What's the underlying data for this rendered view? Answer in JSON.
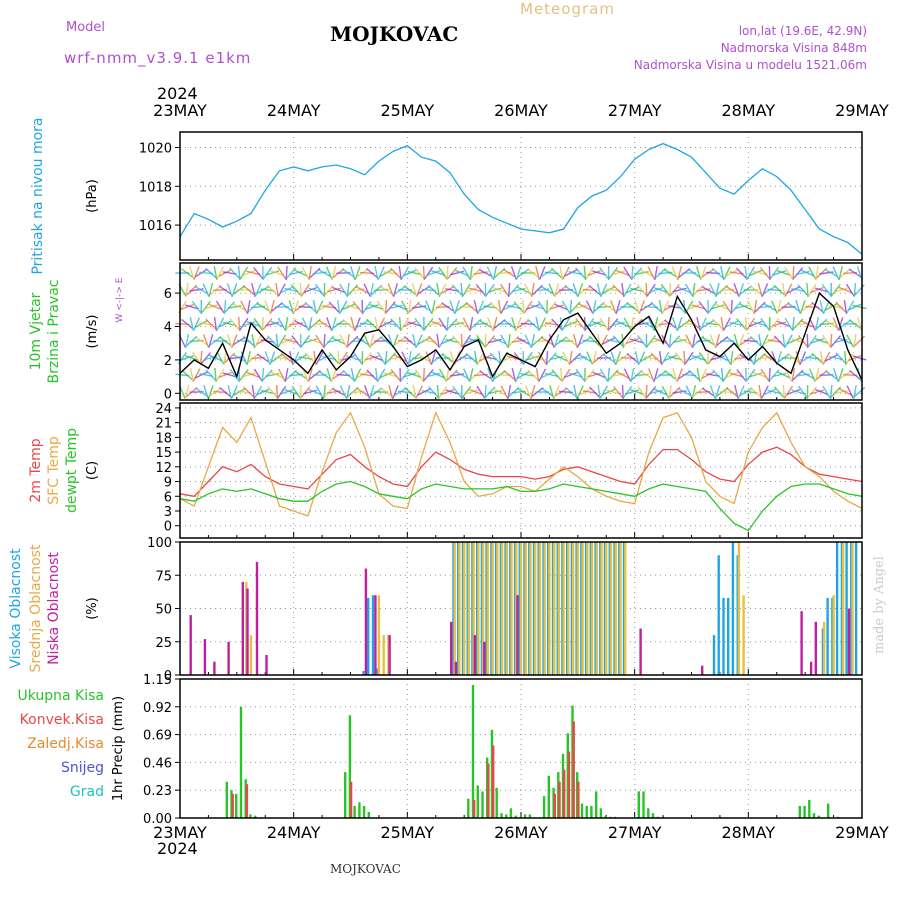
{
  "header": {
    "title": "MOJKOVAC",
    "subtitle": "Meteogram",
    "model_label": "Model",
    "model_name": "wrf-nmm_v3.9.1 e1km",
    "location": "lon,lat (19.6E, 42.9N)",
    "altitude": "Nadmorska Visina 848m",
    "model_altitude": "Nadmorska Visina u modelu 1521.06m"
  },
  "footer": {
    "station": "MOJKOVAC"
  },
  "watermark": "made by Angel",
  "time_axis": {
    "year": "2024",
    "days": [
      "23MAY",
      "24MAY",
      "25MAY",
      "26MAY",
      "27MAY",
      "28MAY",
      "29MAY"
    ]
  },
  "chart_data": [
    {
      "type": "line",
      "panel": "pressure",
      "ylabel_left": "Pritisak na nivou mora",
      "ylabel_units": "(hPa)",
      "ylim": [
        1014.2,
        1020.8
      ],
      "yticks": [
        1016,
        1018,
        1020
      ],
      "grid": true,
      "series": [
        {
          "color": "#1fa5e6",
          "x": [
            0,
            3,
            6,
            9,
            12,
            15,
            18,
            21,
            24,
            27,
            30,
            33,
            36,
            39,
            42,
            45,
            48,
            51,
            54,
            57,
            60,
            63,
            66,
            69,
            72,
            75,
            78,
            81,
            84,
            87,
            90,
            93,
            96,
            99,
            102,
            105,
            108,
            111,
            114,
            117,
            120,
            123,
            126,
            129,
            132,
            135,
            138,
            141,
            144
          ],
          "values": [
            1015.4,
            1016.6,
            1016.3,
            1015.9,
            1016.2,
            1016.6,
            1017.8,
            1018.8,
            1019.0,
            1018.8,
            1019.0,
            1019.1,
            1018.9,
            1018.6,
            1019.3,
            1019.8,
            1020.1,
            1019.5,
            1019.3,
            1018.7,
            1017.6,
            1016.8,
            1016.4,
            1016.1,
            1015.8,
            1015.7,
            1015.6,
            1015.8,
            1016.9,
            1017.5,
            1017.8,
            1018.5,
            1019.4,
            1019.9,
            1020.2,
            1019.9,
            1019.5,
            1018.7,
            1017.9,
            1017.6,
            1018.3,
            1018.9,
            1018.5,
            1017.8,
            1016.8,
            1015.8,
            1015.4,
            1015.1,
            1014.5
          ]
        }
      ]
    },
    {
      "type": "line",
      "panel": "wind",
      "ylabel_left": [
        "10m Vjetar",
        "Brzina i Pravac"
      ],
      "ylabel_units": "(m/s)",
      "compass": "W <-|-> E",
      "ylim": [
        -0.4,
        7.8
      ],
      "yticks": [
        0,
        2,
        4,
        6
      ],
      "grid": true,
      "series": [
        {
          "color": "#000000",
          "x": [
            0,
            3,
            6,
            9,
            12,
            15,
            18,
            21,
            24,
            27,
            30,
            33,
            36,
            39,
            42,
            45,
            48,
            51,
            54,
            57,
            60,
            63,
            66,
            69,
            72,
            75,
            78,
            81,
            84,
            87,
            90,
            93,
            96,
            99,
            102,
            105,
            108,
            111,
            114,
            117,
            120,
            123,
            126,
            129,
            132,
            135,
            138,
            141,
            144
          ],
          "values": [
            1.2,
            2.0,
            1.5,
            3.0,
            1.0,
            4.2,
            3.2,
            2.6,
            2.0,
            1.2,
            2.6,
            1.4,
            2.2,
            3.6,
            3.8,
            2.8,
            1.6,
            2.0,
            2.6,
            1.4,
            2.8,
            3.2,
            1.0,
            2.4,
            2.0,
            1.6,
            3.2,
            4.4,
            4.8,
            3.6,
            2.4,
            3.0,
            4.0,
            4.6,
            3.0,
            5.8,
            4.4,
            2.6,
            2.2,
            3.0,
            2.0,
            2.8,
            1.8,
            1.2,
            3.6,
            6.0,
            5.2,
            2.6,
            0.8
          ]
        }
      ]
    },
    {
      "type": "line",
      "panel": "temperature",
      "ylabel_left": [
        "2m Temp",
        "SFC Temp",
        "dewpt Temp"
      ],
      "ylabel_units": "(C)",
      "ylim": [
        -2.5,
        25
      ],
      "yticks": [
        0,
        3,
        6,
        9,
        12,
        15,
        18,
        21,
        24
      ],
      "grid": true,
      "x": [
        0,
        3,
        6,
        9,
        12,
        15,
        18,
        21,
        24,
        27,
        30,
        33,
        36,
        39,
        42,
        45,
        48,
        51,
        54,
        57,
        60,
        63,
        66,
        69,
        72,
        75,
        78,
        81,
        84,
        87,
        90,
        93,
        96,
        99,
        102,
        105,
        108,
        111,
        114,
        117,
        120,
        123,
        126,
        129,
        132,
        135,
        138,
        141,
        144
      ],
      "series": [
        {
          "name": "2m Temp",
          "color": "#e84848",
          "values": [
            6.5,
            6.0,
            9.0,
            12.0,
            11.0,
            12.5,
            10.0,
            8.5,
            8.0,
            7.5,
            10.5,
            13.5,
            14.5,
            12.0,
            10.0,
            8.5,
            8.0,
            12.0,
            15.0,
            13.5,
            11.5,
            10.5,
            10.0,
            10.0,
            10.0,
            9.5,
            10.0,
            11.5,
            12.0,
            11.0,
            10.0,
            9.0,
            8.5,
            12.5,
            15.5,
            15.5,
            13.5,
            11.0,
            9.5,
            9.0,
            12.5,
            15.0,
            16.0,
            14.5,
            12.0,
            10.5,
            10.0,
            9.5,
            9.0
          ]
        },
        {
          "name": "SFC Temp",
          "color": "#e8a848",
          "values": [
            5.5,
            4.0,
            12.0,
            20.0,
            17.0,
            22.0,
            13.0,
            4.0,
            3.0,
            2.0,
            11.0,
            19.0,
            23.0,
            16.0,
            6.5,
            4.0,
            3.5,
            14.0,
            23.0,
            17.0,
            9.0,
            6.0,
            6.5,
            8.0,
            8.0,
            7.0,
            9.5,
            12.0,
            10.0,
            7.5,
            6.0,
            5.0,
            4.5,
            15.0,
            22.0,
            23.0,
            18.0,
            9.0,
            6.0,
            4.5,
            15.0,
            20.0,
            23.0,
            17.0,
            12.0,
            10.0,
            7.0,
            5.0,
            3.5
          ]
        },
        {
          "name": "dewpt Temp",
          "color": "#28c428",
          "values": [
            5.5,
            5.0,
            6.5,
            7.5,
            7.0,
            7.5,
            6.5,
            5.5,
            5.0,
            5.0,
            7.0,
            8.5,
            9.0,
            8.0,
            6.5,
            6.0,
            5.5,
            7.5,
            8.5,
            8.0,
            7.5,
            7.5,
            7.5,
            8.0,
            7.0,
            7.0,
            7.5,
            8.5,
            8.0,
            7.5,
            7.0,
            6.5,
            6.0,
            7.5,
            8.5,
            8.0,
            7.5,
            7.0,
            3.5,
            0.5,
            -1.0,
            3.0,
            6.0,
            8.0,
            8.5,
            8.5,
            7.5,
            6.5,
            6.0
          ]
        }
      ]
    },
    {
      "type": "bar",
      "panel": "cloud",
      "ylabel_left": [
        "Visoka Oblacnost",
        "Srednja Oblacnost",
        "Niska Oblacnost"
      ],
      "ylabel_units": "(%)",
      "ylim": [
        0,
        100
      ],
      "yticks": [
        0,
        25,
        50,
        75,
        100
      ],
      "grid": true,
      "series": [
        {
          "name": "Visoka Oblacnost",
          "color": "#1fa5e6",
          "x": [
            39,
            40,
            41,
            42,
            58,
            59,
            60,
            61,
            62,
            63,
            64,
            65,
            66,
            67,
            68,
            69,
            70,
            71,
            72,
            73,
            74,
            75,
            76,
            77,
            78,
            79,
            80,
            81,
            82,
            83,
            84,
            85,
            86,
            87,
            88,
            89,
            90,
            91,
            92,
            93,
            94,
            113,
            114,
            115,
            116,
            117,
            118,
            136,
            137,
            138,
            139,
            140,
            141,
            142,
            143
          ],
          "values": [
            3,
            58,
            60,
            5,
            100,
            100,
            100,
            100,
            100,
            100,
            100,
            100,
            100,
            100,
            100,
            100,
            100,
            100,
            100,
            100,
            100,
            100,
            100,
            100,
            100,
            100,
            100,
            100,
            100,
            100,
            100,
            100,
            100,
            100,
            100,
            100,
            100,
            100,
            100,
            100,
            100,
            30,
            90,
            58,
            58,
            100,
            90,
            35,
            58,
            58,
            100,
            100,
            100,
            100,
            100
          ]
        },
        {
          "name": "Srednja Oblacnost",
          "color": "#e8c040",
          "x": [
            14,
            15,
            42,
            43,
            44,
            58,
            59,
            60,
            61,
            62,
            63,
            64,
            65,
            66,
            67,
            68,
            69,
            70,
            71,
            72,
            73,
            74,
            75,
            76,
            77,
            78,
            79,
            80,
            81,
            82,
            83,
            84,
            85,
            86,
            87,
            88,
            89,
            90,
            91,
            92,
            93,
            94,
            118,
            119,
            136,
            138,
            140,
            142
          ],
          "values": [
            70,
            30,
            60,
            30,
            30,
            100,
            100,
            100,
            100,
            100,
            100,
            100,
            100,
            100,
            100,
            100,
            100,
            100,
            100,
            100,
            100,
            100,
            100,
            100,
            100,
            100,
            100,
            100,
            100,
            100,
            100,
            100,
            100,
            100,
            100,
            100,
            100,
            100,
            100,
            100,
            100,
            100,
            100,
            60,
            40,
            60,
            100,
            100
          ]
        },
        {
          "name": "Niska Oblacnost",
          "color": "#c020a0",
          "x": [
            2,
            5,
            7,
            10,
            13,
            14,
            16,
            18,
            39,
            41,
            44,
            57,
            58,
            62,
            64,
            71,
            97,
            110,
            131,
            133,
            134,
            141
          ],
          "values": [
            45,
            27,
            10,
            25,
            70,
            65,
            85,
            15,
            80,
            60,
            30,
            40,
            10,
            30,
            25,
            60,
            35,
            7,
            48,
            10,
            40,
            50
          ]
        }
      ]
    },
    {
      "type": "bar",
      "panel": "precipitation",
      "ylabel_left": [
        "Ukupna Kisa",
        "Konvek.Kisa",
        "Zaledj.Kisa",
        "Snijeg",
        "Grad"
      ],
      "legend_colors": [
        "#28c428",
        "#e84848",
        "#e88a30",
        "#5050e0",
        "#20c0c0"
      ],
      "ylabel_units": "1hr Precip (mm)",
      "ylim": [
        0,
        1.15
      ],
      "yticks": [
        0,
        0.23,
        0.46,
        0.69,
        0.92,
        1.15
      ],
      "grid": true,
      "series": [
        {
          "name": "Ukupna Kisa",
          "color": "#28c428",
          "x": [
            10,
            11,
            12,
            13,
            14,
            15,
            16,
            35,
            36,
            37,
            38,
            39,
            40,
            61,
            62,
            63,
            64,
            65,
            66,
            67,
            68,
            69,
            70,
            71,
            73,
            74,
            77,
            78,
            79,
            80,
            81,
            82,
            83,
            84,
            85,
            86,
            87,
            88,
            89,
            90,
            91,
            92,
            97,
            98,
            99,
            100,
            101,
            131,
            132,
            133,
            134,
            135,
            137,
            139
          ],
          "values": [
            0.3,
            0.23,
            0.2,
            0.92,
            0.32,
            0.03,
            0.02,
            0.38,
            0.85,
            0.1,
            0.13,
            0.1,
            0.05,
            0.16,
            1.1,
            0.27,
            0.22,
            0.5,
            0.73,
            0.25,
            0.04,
            0.03,
            0.08,
            0.02,
            0.03,
            0.03,
            0.18,
            0.35,
            0.25,
            0.38,
            0.53,
            0.7,
            0.93,
            0.38,
            0.12,
            0.1,
            0.1,
            0.22,
            0.08,
            0.02,
            0.01,
            0.01,
            0.22,
            0.22,
            0.08,
            0.04,
            0.01,
            0.1,
            0.1,
            0.15,
            0.04,
            0.02,
            0.12,
            0.01
          ]
        },
        {
          "name": "Konvek.Kisa",
          "color": "#e84848",
          "x": [
            11,
            14,
            36,
            62,
            65,
            66,
            79,
            80,
            81,
            82,
            83,
            84
          ],
          "values": [
            0.2,
            0.28,
            0.3,
            0.15,
            0.45,
            0.6,
            0.2,
            0.3,
            0.4,
            0.55,
            0.8,
            0.3
          ]
        }
      ]
    }
  ]
}
